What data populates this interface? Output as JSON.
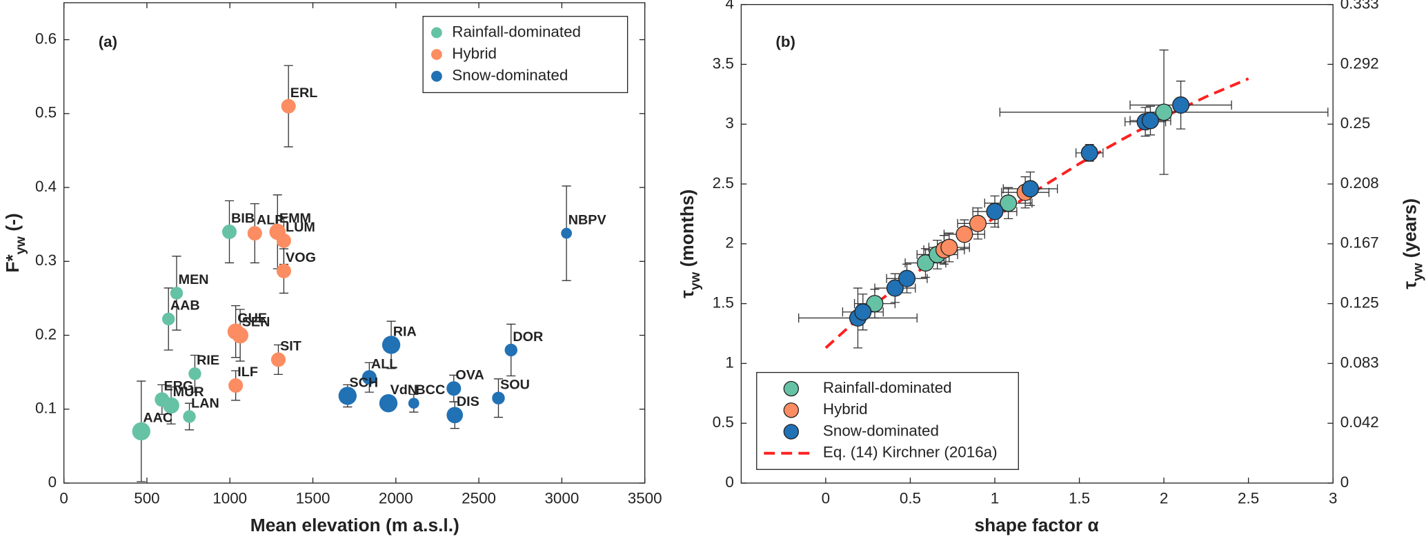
{
  "chart_data": [
    {
      "type": "scatter",
      "panel": "(a)",
      "xlabel": "Mean elevation (m a.s.l.)",
      "ylabel": {
        "main": "F*",
        "sub": "yw",
        "rest": " (-)"
      },
      "xlim": [
        0,
        3500
      ],
      "xticks": [
        0,
        500,
        1000,
        1500,
        2000,
        2500,
        3000,
        3500
      ],
      "ylim": [
        0,
        0.65
      ],
      "yticks": [
        0,
        0.1,
        0.2,
        0.3,
        0.4,
        0.5,
        0.6
      ],
      "legend": "upper right",
      "series": [
        {
          "name": "Rainfall-dominated",
          "color": "#66c2a5",
          "labels": [
            "AAC",
            "ERG",
            "MUR",
            "LAN",
            "RIE",
            "AAB",
            "MEN",
            "BIB"
          ],
          "x": [
            466,
            591,
            646,
            756,
            789,
            630,
            679,
            997
          ],
          "values": [
            0.07,
            0.113,
            0.105,
            0.09,
            0.148,
            0.222,
            0.257,
            0.34
          ],
          "errors": [
            0.068,
            0.02,
            0.025,
            0.018,
            0.025,
            0.042,
            0.05,
            0.042
          ],
          "sizes": [
            10,
            8,
            9,
            7,
            7,
            7,
            7,
            8
          ]
        },
        {
          "name": "Hybrid",
          "color": "#fc8d62",
          "labels": [
            "ERL",
            "ALP",
            "EMM",
            "LUM",
            "VOG",
            "GUE",
            "SEN",
            "SIT",
            "ILF"
          ],
          "x": [
            1353,
            1150,
            1287,
            1325,
            1325,
            1035,
            1062,
            1292,
            1035
          ],
          "values": [
            0.51,
            0.338,
            0.34,
            0.328,
            0.287,
            0.205,
            0.2,
            0.167,
            0.132
          ],
          "errors": [
            0.055,
            0.04,
            0.05,
            0.032,
            0.03,
            0.035,
            0.035,
            0.02,
            0.02
          ],
          "sizes": [
            8,
            8,
            9,
            8,
            8,
            9,
            9,
            8,
            8
          ]
        },
        {
          "name": "Snow-dominated",
          "color": "#2171b5",
          "labels": [
            "NBPV",
            "RIA",
            "DOR",
            "ALL",
            "OVA",
            "SCH",
            "VdN",
            "BCC",
            "SOU",
            "DIS"
          ],
          "x": [
            3028,
            1972,
            2694,
            1840,
            2349,
            1709,
            1955,
            2108,
            2618,
            2355
          ],
          "values": [
            0.338,
            0.187,
            0.18,
            0.143,
            0.128,
            0.118,
            0.108,
            0.108,
            0.115,
            0.092
          ],
          "errors": [
            0.064,
            0.032,
            0.035,
            0.02,
            0.018,
            0.015,
            0.01,
            0.012,
            0.026,
            0.018
          ],
          "sizes": [
            6,
            10,
            7,
            8,
            8,
            10,
            10,
            6,
            7,
            9
          ]
        }
      ]
    },
    {
      "type": "scatter",
      "panel": "(b)",
      "xlabel": "shape factor α",
      "ylabel": {
        "main": "τ",
        "sub": "yw",
        "rest": " (months)"
      },
      "y2label": {
        "main": "τ",
        "sub": "yw",
        "rest": " (years)"
      },
      "xlim": [
        -0.5,
        3
      ],
      "xticks": [
        0,
        0.5,
        1,
        1.5,
        2,
        2.5,
        3
      ],
      "ylim": [
        0,
        4
      ],
      "yticks": [
        0,
        0.5,
        1,
        1.5,
        2,
        2.5,
        3,
        3.5,
        4
      ],
      "y2lim": [
        0,
        0.33333
      ],
      "y2ticks": [
        0,
        {
          "value": 0.04167,
          "label": "0.042"
        },
        {
          "value": 0.08333,
          "label": "0.083"
        },
        0.125,
        {
          "value": 0.16667,
          "label": "0.167"
        },
        {
          "value": 0.20833,
          "label": "0.208"
        },
        0.25,
        {
          "value": 0.29167,
          "label": "0.292"
        },
        {
          "value": 0.33333,
          "label": "0.333"
        }
      ],
      "legend": "lower left",
      "series": [
        {
          "name": "Rainfall-dominated",
          "color": "#66c2a5",
          "x": [
            0.29,
            0.59,
            0.66,
            1.08,
            2.0
          ],
          "values": [
            1.5,
            1.84,
            1.91,
            2.34,
            3.1
          ],
          "xerrors": [
            0.12,
            0.12,
            0.12,
            0.14,
            0.97
          ],
          "errors": [
            0.12,
            0.12,
            0.12,
            0.13,
            0.52
          ]
        },
        {
          "name": "Hybrid",
          "color": "#fc8d62",
          "x": [
            0.7,
            0.73,
            0.82,
            0.9,
            1.18
          ],
          "values": [
            1.95,
            1.97,
            2.08,
            2.17,
            2.43
          ],
          "xerrors": [
            0.12,
            0.12,
            0.12,
            0.12,
            0.14
          ],
          "errors": [
            0.12,
            0.12,
            0.12,
            0.13,
            0.13
          ]
        },
        {
          "name": "Snow-dominated",
          "color": "#2171b5",
          "x": [
            0.19,
            0.22,
            0.41,
            0.48,
            1.0,
            1.21,
            1.56,
            1.89,
            1.92,
            2.1
          ],
          "values": [
            1.38,
            1.43,
            1.63,
            1.71,
            2.27,
            2.46,
            2.76,
            3.02,
            3.03,
            3.16
          ],
          "xerrors": [
            0.35,
            0.12,
            0.12,
            0.12,
            0.13,
            0.16,
            0.08,
            0.12,
            0.12,
            0.3
          ],
          "errors": [
            0.25,
            0.15,
            0.12,
            0.12,
            0.13,
            0.14,
            0.07,
            0.12,
            0.12,
            0.2
          ]
        },
        {
          "name": "Eq. (14) Kirchner (2016a)",
          "color": "#ff2020",
          "line": true,
          "x": [
            0,
            0.25,
            0.5,
            0.75,
            1,
            1.25,
            1.5,
            1.75,
            2,
            2.25,
            2.5
          ],
          "values": [
            1.13,
            1.45,
            1.72,
            1.98,
            2.22,
            2.45,
            2.67,
            2.87,
            3.06,
            3.23,
            3.38
          ]
        }
      ]
    }
  ]
}
